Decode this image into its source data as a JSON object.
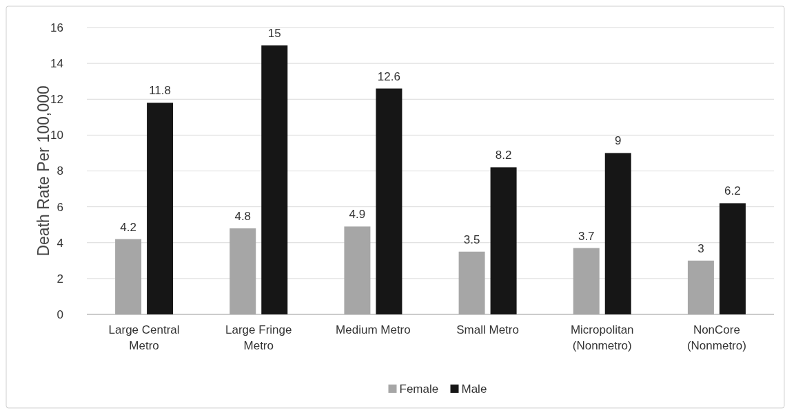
{
  "chart_data": {
    "type": "bar",
    "ylabel": "Death Rate Per 100,000",
    "categories": [
      "Large Central Metro",
      "Large Fringe Metro",
      "Medium Metro",
      "Small Metro",
      "Micropolitan (Nonmetro)",
      "NonCore (Nonmetro)"
    ],
    "series": [
      {
        "name": "Female",
        "color": "#a6a6a6",
        "values": [
          4.2,
          4.8,
          4.9,
          3.5,
          3.7,
          3
        ]
      },
      {
        "name": "Male",
        "color": "#161616",
        "values": [
          11.8,
          15,
          12.6,
          8.2,
          9,
          6.2
        ]
      }
    ],
    "ylim": [
      0,
      16
    ],
    "yticks": [
      0,
      2,
      4,
      6,
      8,
      10,
      12,
      14,
      16
    ],
    "grid": "y",
    "data_labels": true,
    "legend": "bottom"
  }
}
